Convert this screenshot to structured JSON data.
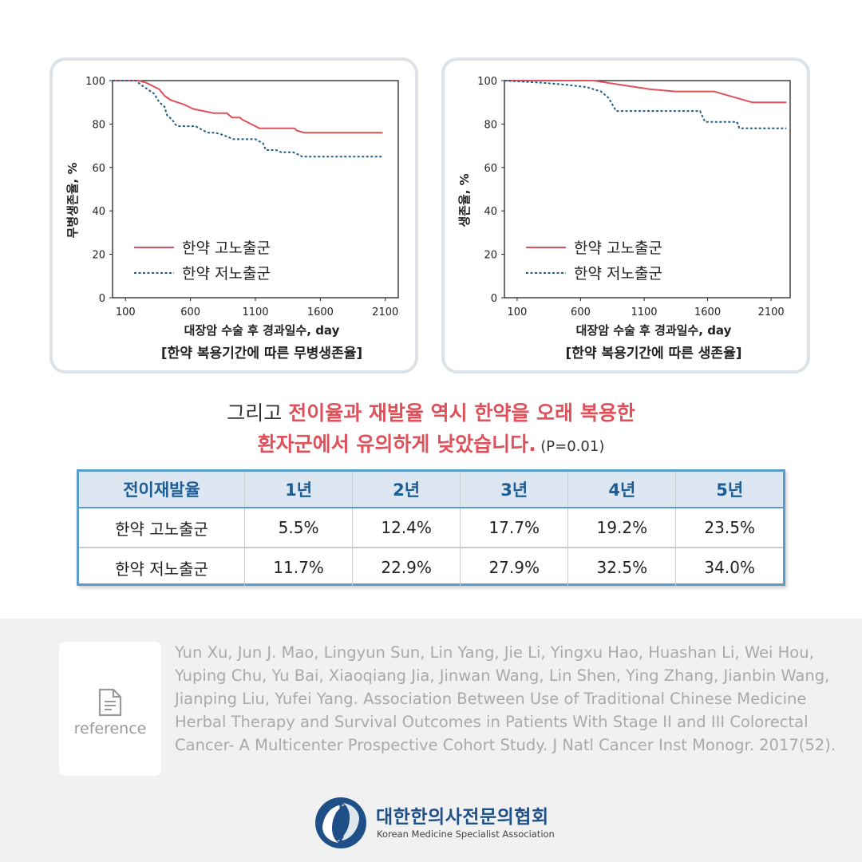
{
  "charts": [
    {
      "type": "line",
      "title": "[한약 복용기간에 따른 무병생존율]",
      "xlabel": "대장암 수술 후 경과일수, day",
      "ylabel": "무병생존율, %",
      "xlim": [
        0,
        2200
      ],
      "ylim": [
        0,
        100
      ],
      "x_ticks": [
        100,
        600,
        1100,
        1600,
        2100
      ],
      "y_ticks": [
        0,
        20,
        40,
        60,
        80,
        100
      ],
      "series": [
        {
          "name": "한약 고노출군",
          "color": "#e0505a",
          "dash": false,
          "x": [
            0,
            200,
            260,
            360,
            400,
            450,
            500,
            550,
            620,
            700,
            780,
            880,
            920,
            980,
            1000,
            1100,
            1130,
            1200,
            1260,
            1400,
            1420,
            1480,
            1540,
            2080
          ],
          "y": [
            100,
            100,
            99,
            96,
            93,
            91,
            90,
            89,
            87,
            86,
            85,
            85,
            83,
            83,
            82,
            79,
            78,
            78,
            78,
            78,
            77,
            76,
            76,
            76
          ]
        },
        {
          "name": "한약 저노출군",
          "color": "#1f5e8a",
          "dash": true,
          "x": [
            0,
            180,
            220,
            270,
            320,
            360,
            400,
            420,
            460,
            480,
            500,
            560,
            640,
            700,
            740,
            790,
            850,
            930,
            1100,
            1160,
            1180,
            1260,
            1300,
            1350,
            1390,
            1430,
            1460,
            2080
          ],
          "y": [
            100,
            100,
            98,
            96,
            94,
            90,
            88,
            84,
            82,
            80,
            79,
            79,
            79,
            77,
            76,
            76,
            75,
            73,
            73,
            71,
            68,
            68,
            67,
            67,
            67,
            66,
            65,
            65
          ]
        }
      ]
    },
    {
      "type": "line",
      "title": "[한약 복용기간에 따른 생존율]",
      "xlabel": "대장암 수술 후 경과일수, day",
      "ylabel": "생존율, %",
      "xlim": [
        0,
        2250
      ],
      "ylim": [
        0,
        100
      ],
      "x_ticks": [
        100,
        600,
        1100,
        1600,
        2100
      ],
      "y_ticks": [
        0,
        20,
        40,
        60,
        80,
        100
      ],
      "series": [
        {
          "name": "한약 고노출군",
          "color": "#e0505a",
          "dash": false,
          "x": [
            0,
            700,
            1150,
            1350,
            1650,
            1950,
            2220
          ],
          "y": [
            100,
            100,
            96,
            95,
            95,
            90,
            90
          ]
        },
        {
          "name": "한약 저노출군",
          "color": "#1f5e8a",
          "dash": true,
          "x": [
            0,
            300,
            500,
            650,
            760,
            820,
            880,
            1000,
            1200,
            1540,
            1580,
            1830,
            1850,
            2220
          ],
          "y": [
            100,
            99,
            98,
            97,
            95,
            92,
            86,
            86,
            86,
            86,
            81,
            81,
            78,
            78
          ]
        }
      ]
    }
  ],
  "headline": {
    "line1_prefix": "그리고 ",
    "line1_highlight": "전이율과 재발율 역시 한약을 오래 복용한",
    "line2_highlight": "환자군에서 유의하게 낮았습니다.",
    "line2_suffix": " (P=0.01)"
  },
  "table": {
    "header": [
      "전이재발율",
      "1년",
      "2년",
      "3년",
      "4년",
      "5년"
    ],
    "rows": [
      [
        "한약 고노출군",
        "5.5%",
        "12.4%",
        "17.7%",
        "19.2%",
        "23.5%"
      ],
      [
        "한약 저노출군",
        "11.7%",
        "22.9%",
        "27.9%",
        "32.5%",
        "34.0%"
      ]
    ]
  },
  "reference": {
    "label": "reference",
    "icon": "document-icon",
    "text": "Yun Xu, Jun J. Mao, Lingyun Sun, Lin Yang, Jie Li, Yingxu Hao, Huashan Li, Wei Hou, Yuping Chu, Yu Bai, Xiaoqiang Jia, Jinwan Wang, Lin Shen, Ying Zhang, Jianbin Wang, Jianping Liu, Yufei Yang. Association Between Use of Traditional Chinese Medicine Herbal Therapy and Survival Outcomes in Patients With Stage II and III Colorectal Cancer- A Multicenter Prospective Cohort Study. J Natl Cancer Inst Monogr. 2017(52)."
  },
  "organization": {
    "name": "대한한의사전문의협회",
    "subtitle": "Korean Medicine Specialist Association",
    "brand_color": "#1f4f87"
  }
}
